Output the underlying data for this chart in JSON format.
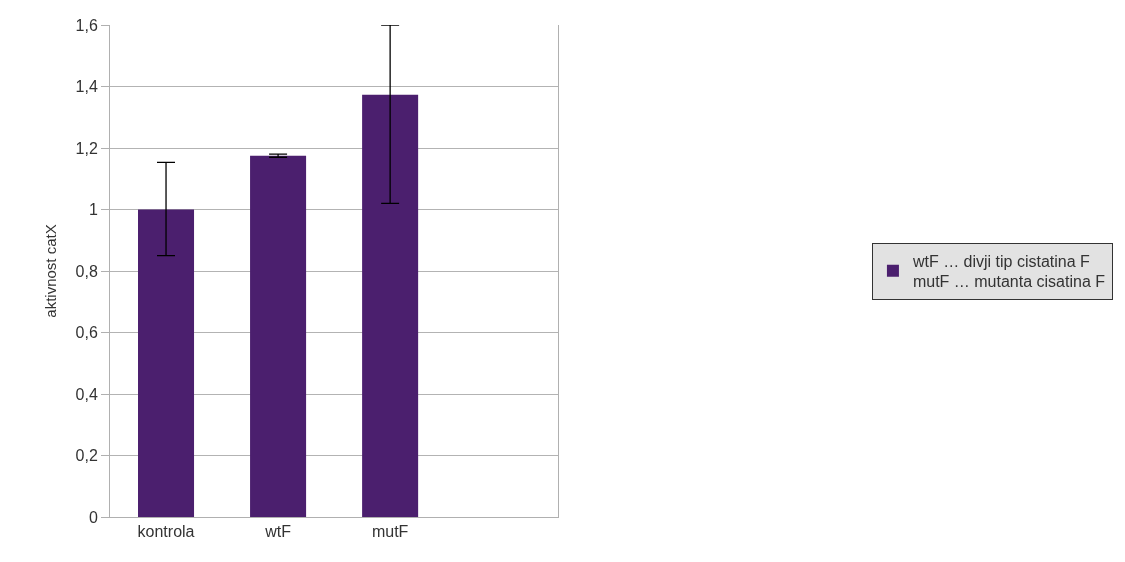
{
  "chart_data": {
    "type": "bar",
    "ylabel": "aktivnost catX",
    "categories": [
      "kontrola",
      "wtF",
      "mutF",
      null
    ],
    "series": [
      {
        "name": "wtF … divji tip cistatina F\nmutF … mutanta cisatina F",
        "color": "#4b1f6e",
        "values": [
          1.0,
          1.175,
          1.373,
          null
        ],
        "errors": [
          [
            0.85,
            1.153
          ],
          [
            1.17,
            1.18
          ],
          [
            1.02,
            1.6
          ],
          null
        ]
      }
    ],
    "ylim": [
      0,
      1.6
    ],
    "yticks": [
      0,
      {
        "value": 0.2,
        "label": "0,2"
      },
      {
        "value": 0.4,
        "label": "0,4"
      },
      {
        "value": 0.6,
        "label": "0,6"
      },
      {
        "value": 0.8,
        "label": "0,8"
      },
      1,
      {
        "value": 1.2,
        "label": "1,2"
      },
      {
        "value": 1.4,
        "label": "1,4"
      },
      {
        "value": 1.6,
        "label": "1,6"
      }
    ],
    "grid": "y",
    "legend": "right"
  }
}
